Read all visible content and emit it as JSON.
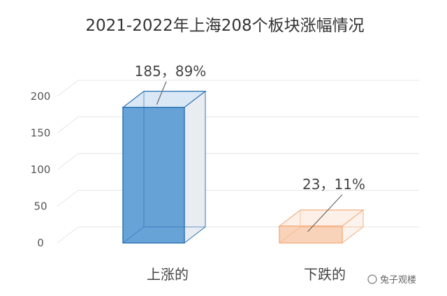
{
  "watermark": "兔子观楼",
  "chart_data": {
    "type": "bar",
    "style": "3d-box",
    "title": "2021-2022年上海208个板块涨幅情况",
    "xlabel": "",
    "ylabel": "",
    "categories": [
      "上涨的",
      "下跌的"
    ],
    "values": [
      185,
      23
    ],
    "data_labels": [
      "185，89%",
      "23，11%"
    ],
    "ylim": [
      0,
      200
    ],
    "yticks": [
      0,
      50,
      100,
      150,
      200
    ],
    "ytick_labels": [
      "0",
      "50",
      "100",
      "150",
      "200"
    ],
    "grid": true,
    "legend": "none",
    "colors": {
      "bar_fill": [
        "#5b9bd5",
        "#f8cbad"
      ],
      "bar_edge": [
        "#2e75b6",
        "#f4b183"
      ],
      "bar_top": [
        "#dae8f5",
        "#fdf0e8"
      ],
      "bar_side": [
        "#e9edf2",
        "#fcf3ee"
      ],
      "grid": "#e6e6e6",
      "text": "#444444"
    }
  }
}
